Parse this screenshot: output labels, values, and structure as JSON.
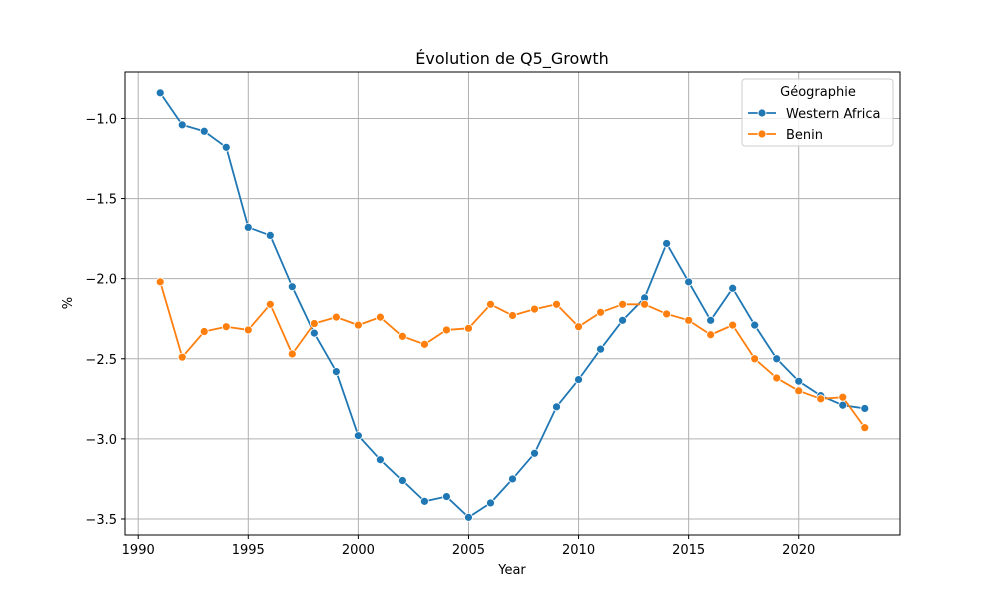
{
  "chart_data": {
    "type": "line",
    "title": "Évolution de Q5_Growth",
    "xlabel": "Year",
    "ylabel": "%",
    "xlim": [
      1989.4,
      2024.6
    ],
    "ylim": [
      -3.6,
      -0.71
    ],
    "x_ticks": [
      1990,
      1995,
      2000,
      2005,
      2010,
      2015,
      2020
    ],
    "x_tick_labels": [
      "1990",
      "1995",
      "2000",
      "2005",
      "2010",
      "2015",
      "2020"
    ],
    "y_ticks": [
      -1.0,
      -1.5,
      -2.0,
      -2.5,
      -3.0,
      -3.5
    ],
    "y_tick_labels": [
      "−1.0",
      "−1.5",
      "−2.0",
      "−2.5",
      "−3.0",
      "−3.5"
    ],
    "grid": true,
    "legend": {
      "title": "Géographie",
      "placement": "top-right"
    },
    "x": [
      1991,
      1992,
      1993,
      1994,
      1995,
      1996,
      1997,
      1998,
      1999,
      2000,
      2001,
      2002,
      2003,
      2004,
      2005,
      2006,
      2007,
      2008,
      2009,
      2010,
      2011,
      2012,
      2013,
      2014,
      2015,
      2016,
      2017,
      2018,
      2019,
      2020,
      2021,
      2022,
      2023
    ],
    "series": [
      {
        "name": "Western Africa",
        "color": "#1f77b4",
        "values": [
          -0.84,
          -1.04,
          -1.08,
          -1.18,
          -1.68,
          -1.73,
          -2.05,
          -2.34,
          -2.58,
          -2.98,
          -3.13,
          -3.26,
          -3.39,
          -3.36,
          -3.49,
          -3.4,
          -3.25,
          -3.09,
          -2.8,
          -2.63,
          -2.44,
          -2.26,
          -2.12,
          -1.78,
          -2.02,
          -2.26,
          -2.06,
          -2.29,
          -2.5,
          -2.64,
          -2.73,
          -2.79,
          -2.81
        ]
      },
      {
        "name": "Benin",
        "color": "#ff7f0e",
        "values": [
          -2.02,
          -2.49,
          -2.33,
          -2.3,
          -2.32,
          -2.16,
          -2.47,
          -2.28,
          -2.24,
          -2.29,
          -2.24,
          -2.36,
          -2.41,
          -2.32,
          -2.31,
          -2.16,
          -2.23,
          -2.19,
          -2.16,
          -2.3,
          -2.21,
          -2.16,
          -2.16,
          -2.22,
          -2.26,
          -2.35,
          -2.29,
          -2.5,
          -2.62,
          -2.7,
          -2.75,
          -2.74,
          -2.93
        ]
      }
    ]
  }
}
